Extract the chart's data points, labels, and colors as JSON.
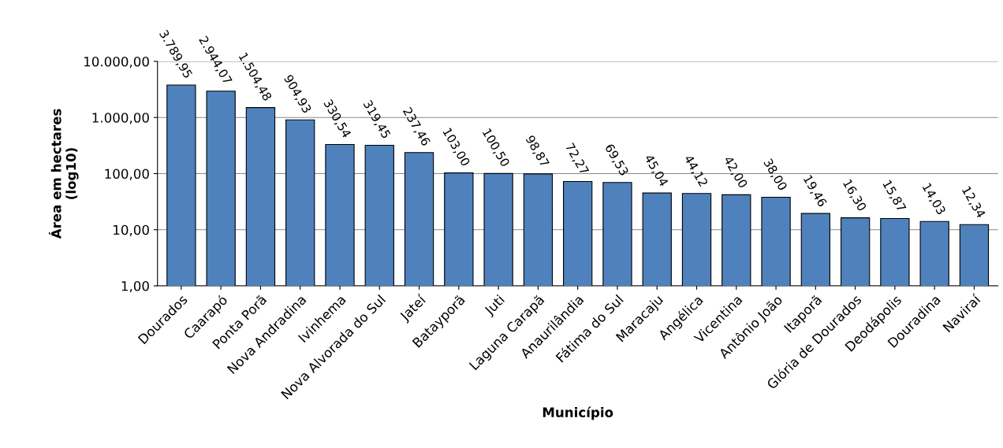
{
  "chart_data": {
    "type": "bar",
    "xlabel": "Município",
    "ylabel": "Área em hectares\n(log10)",
    "categories": [
      "Dourados",
      "Caarapó",
      "Ponta Porã",
      "Nova Andradina",
      "Ivinhema",
      "Nova Alvorada do Sul",
      "Jateí",
      "Batayporã",
      "Juti",
      "Laguna Carapã",
      "Anaurilândia",
      "Fátima do Sul",
      "Maracaju",
      "Angélica",
      "Vicentina",
      "Antônio João",
      "Itaporã",
      "Glória de Dourados",
      "Deodápolis",
      "Douradina",
      "Naviraí"
    ],
    "values": [
      3789.95,
      2944.07,
      1504.48,
      904.93,
      330.54,
      319.45,
      237.46,
      103.0,
      100.5,
      98.87,
      72.27,
      69.53,
      45.04,
      44.12,
      42.0,
      38.0,
      19.46,
      16.3,
      15.87,
      14.03,
      12.34
    ],
    "value_labels": [
      "3.789,95",
      "2.944,07",
      "1.504,48",
      "904,93",
      "330,54",
      "319,45",
      "237,46",
      "103,00",
      "100,50",
      "98,87",
      "72,27",
      "69,53",
      "45,04",
      "44,12",
      "42,00",
      "38,00",
      "19,46",
      "16,30",
      "15,87",
      "14,03",
      "12,34"
    ],
    "color": "#4f81bd",
    "log": true,
    "ylim": [
      1,
      10000
    ],
    "yticks": [
      {
        "value": 1,
        "label": "1,00"
      },
      {
        "value": 10,
        "label": "10,00"
      },
      {
        "value": 100,
        "label": "100,00"
      },
      {
        "value": 1000,
        "label": "1.000,00"
      },
      {
        "value": 10000,
        "label": "10.000,00"
      }
    ],
    "grid": "y",
    "legend": false
  }
}
